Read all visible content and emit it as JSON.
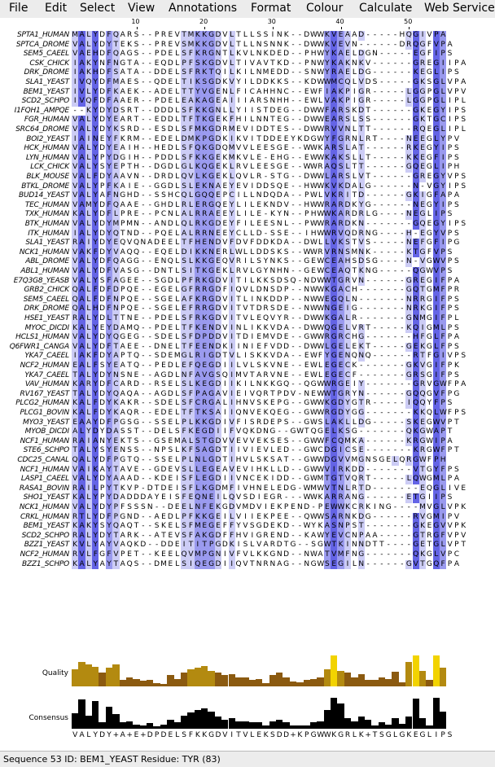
{
  "menubar": {
    "items": [
      "File",
      "Edit",
      "Select",
      "View",
      "Annotations",
      "Format",
      "Colour",
      "Calculate",
      "Web Service"
    ]
  },
  "ruler": {
    "ticks": [
      "10",
      "20",
      "30",
      "40",
      "50"
    ]
  },
  "colors": {
    "strong": "#6464e6",
    "medium": "#9a9aef",
    "light": "#ccccf5",
    "quality_low": "#8b5a10",
    "quality_mid": "#b38a10",
    "quality_high": "#f2d300",
    "consensus": "#000000"
  },
  "sequences": [
    {
      "id": "SPTA1_HUMAN",
      "seq": "MALYDFQARS--PREVTMKKGDVLTLLSSINK--DWWKVEAAD-----HQGIVPA"
    },
    {
      "id": "SPTCA_DROME",
      "seq": "VALYDYTEKS--PREVSMKKGDVLTLLNSNNK--DWWKVEVN------DRQGFVPA"
    },
    {
      "id": "SEM5_CAEEL",
      "seq": "VAEHDFQAGS--PDELSFKRGNTLKVLNKDED--PHWYKAELDGN-----EGFIPS"
    },
    {
      "id": "CSK_CHICK",
      "seq": "IAKYNFNGTA--EQDLPFSKGDVLTIVAVTKD--PNWYKAKNKV------GREGIIPA"
    },
    {
      "id": "DRK_DROME",
      "seq": "IAKHDFSATA--DDELSFRKTQILKILNMEDD--SNWYRAELDG------KEGLIPS"
    },
    {
      "id": "SLA1_YEAST",
      "seq": "IVQYDFMAES--QDELTIKSGDKVYILDDKKS--KDWWMCQLVDS-----GKSGLVPA"
    },
    {
      "id": "BEM1_YEAST",
      "seq": "IVLYDFKAEK--ADELTTYVGENLFICAHHNC--EWFIAKPIGR-----LGGPGLVPV"
    },
    {
      "id": "SCD2_SCHPO",
      "seq": "IVQFDFAAER--PDELEAKAGEAIIIARSNHH--EWLVAKPIGR-----LGGPGLIPL"
    },
    {
      "id": "I1FQH1_AMPQE",
      "seq": "--KYDYDSRT--DDDLSFKKGNLLYIISTDEG--DWWFARSKDT------GKEGYIPS"
    },
    {
      "id": "FGR_HUMAN",
      "seq": "VALYDYEART--EDDLTFTKGEKFHILNNTEG--DWWEARSLSS------GKTGCIPS"
    },
    {
      "id": "SRC64_DROME",
      "seq": "VALYDYKSRD--ESDLSFMKGDRMEVIDDTES--DWWRVVNLTT------RQEGLIPL"
    },
    {
      "id": "BOI2_YEAST",
      "seq": "IAINEYFKRM--EDELDMKPGDKIKVITDDEEYKDGWYFGRNLRT----NEEGLYPV"
    },
    {
      "id": "HCK_HUMAN",
      "seq": "VALYDYEAIH--HEDLSFQKGDQMVVLEESGE--WWKARSLAT------RKEGYIPS"
    },
    {
      "id": "LYN_HUMAN",
      "seq": "VALYPYDGIH--PDDLSFKKGEKMKVLE-EHG--EWWKAKSLLT-----KKEGFIPS"
    },
    {
      "id": "LCK_CHICK",
      "seq": "VALYSYEPTH--DGDLGLKQGEKLRVLEESGE--WWRAQSLTT------GQEGLIPH"
    },
    {
      "id": "BLK_MOUSE",
      "seq": "VALFDYAAVN--DRDLQVLKGEKLQVLR-STG--DWWLARSLVT------GREGYVPS"
    },
    {
      "id": "BTKL_DROME",
      "seq": "VALYPFKAIE--GGDLSLEKNAEYEVIDDSQE--HWWKVKDALG------N-VGYIPS"
    },
    {
      "id": "BUD14_YEAST",
      "seq": "VALYAFNGHD--SSHCQLGQQEPCILLNDQDA--PWLVKRITD------GKIGFAPA"
    },
    {
      "id": "TEC_HUMAN",
      "seq": "VAMYDFQAAE--GHDLRLERGQEYLILEKNDV--HWWRARDKYG------NEGYIPS"
    },
    {
      "id": "TXK_HUMAN",
      "seq": "KALYDFLPRE--PCNLALRRAEEYLILE-KYN--PHWWKARDRLG----NEGLIPS"
    },
    {
      "id": "BTK_HUMAN",
      "seq": "VALYDYMPMN--ANDLQLRKGDEYFILEESNL--PWWRARDKN-------GQEGYIPS"
    },
    {
      "id": "ITK_HUMAN",
      "seq": "IALYDYQTND--PQELALRRNEEYCLLD-SSE--IHWWRVQDRNG----H-EGYVPS"
    },
    {
      "id": "SLA1_YEAST",
      "seq": "RAIYDYEQVQNADEELTFHENDVFDVFDDKDA--DWLLVKSTVS-----NEFGFIPG"
    },
    {
      "id": "NCK1_HUMAN",
      "seq": "VAKFDYVAQQ--EQELDIKKNERLWLLDDSKS--WWRVRNSMNK-----KTGFVPS"
    },
    {
      "id": "ABL_DROME",
      "seq": "VALYDFQAGG--ENQLSLKKGEQVRILSYNKS--GEWCEAHSDSG----N-VGWVPS"
    },
    {
      "id": "ABL1_HUMAN",
      "seq": "VALYDFVASG--DNTLSITKGEKLRVLGYNHN--GEWCEAQTKNG-----QGWVPS"
    },
    {
      "id": "E7Q3G8_YEASB",
      "seq": "VALYSFAGEE--SGDLPFRKGDVITILKKSDSQ-NDWWTGRVN------GREGIFPA"
    },
    {
      "id": "GRB2_CHICK",
      "seq": "QALFDFDPQE--EGELGFRRGDFIQVLDNSDP--NWWKGACH-------GQTGMFPR"
    },
    {
      "id": "SEM5_CAEEL",
      "seq": "QALFDFNPQE--SGELAFKRGDVITLINKDDP--NWWEGQLN-------NRRGIFPS"
    },
    {
      "id": "DRK_DROME",
      "seq": "QALHDFNPQE--SGELEFRRGDVITVTDRSDE--NWWNGEIG-------NRKGIFPS"
    },
    {
      "id": "HSE1_YEAST",
      "seq": "RALYDLTTNE--PDELSFRKGDVITVLEQVYR--DWWKGALR-------GNMGIFPL"
    },
    {
      "id": "MYOC_DICDI",
      "seq": "KALYEYDAMQ--PDELTFKENDVINLIKKVDA--DWWQGELVRT-----KQIGMLPS"
    },
    {
      "id": "HCLS1_HUMAN",
      "seq": "VALYDYQGEG--SDELSFDPDDVITDIEMVDE--GWWRGRCHG-------HFGLFPA"
    },
    {
      "id": "Q6FWR1_CANGA",
      "seq": "VALYDFTAEE--DNELTFEENDKIINIEFVDD--DWWLGELEKT-----GEKGLFPS"
    },
    {
      "id": "YKA7_CAEEL",
      "seq": "IAKFDYAPTQ--SDEMGLRIGDTVLISKKVDA--EWFYGENQNQ------RTFGIVPS"
    },
    {
      "id": "NCF2_HUMAN",
      "seq": "EALFSYEATQ--PEDLEFQEGDIILVLSKVNE--EWLEGECK-------GKVGIFPK"
    },
    {
      "id": "YKA7_CAEEL",
      "seq": "TALYDYNSNE--AGDLNFAVGSQIMVTARVNE--EWLEGECF-------GRSGIFPS"
    },
    {
      "id": "VAV_HUMAN",
      "seq": "KARYDFCARD--RSELSLKEGDIIKILNKKGQ--QGWWRGEIY-------GRVGWFPA"
    },
    {
      "id": "RV167_YEAST",
      "seq": "TALYDYQAQA--AGDLSFPAGAVIEIVQRTPDV-NEWWTGRYN------GQQGVFPG"
    },
    {
      "id": "PLCG2_HUMAN",
      "seq": "KALFDYKAKR--SDELSFCRGALIHNVSKEPG--GWWKGDYGTR-----IQQYFPS"
    },
    {
      "id": "PLCG1_BOVIN",
      "seq": "KALFDYKAQR--EDELTFTKSAIIQNVEKQEG--GWWRGDYGG-------KKQLWFPS"
    },
    {
      "id": "MYO3_YEAST",
      "seq": "EAAYDFPGSG--SSELPLKKGDIVFISRDEPS--GWSLAKLLDG-----SKEGWVPT"
    },
    {
      "id": "MYOB_DICDI",
      "seq": "ALYDYDASST--DELSFKEGDIIFVQKDNG--GWTQGELKSG-------QKGWAPT"
    },
    {
      "id": "NCF1_HUMAN",
      "seq": "RAIANYEKTS--GSEMALSTGDVVEVVEKSES--GWWFCQMKA------KRGWIPA"
    },
    {
      "id": "STE6_SCHPO",
      "seq": "TALYSYENSS--NPSLKFSAGDTIIVIEVLED--GWCDGICSE-------KRGWFPT"
    },
    {
      "id": "CDC25_CANAL",
      "seq": "QALYDFPGTQ--SSELPLNLGDTIHVLSKSAT--GWWDGVVMGNSGELQRGWFPH"
    },
    {
      "id": "NCF1_HUMAN",
      "seq": "VAIKAYTAVE--GDEVSLLEGEAVEVIHKLLD--GWWVIRKDD-------VTGYFPS"
    },
    {
      "id": "LASP1_CAEEL",
      "seq": "VALYDYAAAD--KDEISFLEGDIIVNCEKIDD--GWMTGTVQRT-----LQWGMLPA"
    },
    {
      "id": "RASA1_BOVIN",
      "seq": "RAILPYTKVP-DTDEISFLKGDMFIVHNELEDG-WMWVTNLRTD-------EQGLIVE"
    },
    {
      "id": "SHO1_YEAST",
      "seq": "KALYPYDADDDAYEISFEQNEILQVSDIEGR---WWKARRANG------ETGIIPS"
    },
    {
      "id": "NCK1_HUMAN",
      "seq": "VALYDYPFSSSN--DEELNFEKGDVMDVIEKPEND-PEWWKCRKING----MVGLVPK"
    },
    {
      "id": "CRKL_HUMAN",
      "seq": "RTLYDFPGND--AEDLPFKKGEILVIIEKPEE--QWWSARNKDG------RVGMIPV"
    },
    {
      "id": "BEM1_YEAST",
      "seq": "KAKYSYQAQT--SKELSFMEGEFFYVSGDEKD--WYKASNPST-------GKEGVVPK"
    },
    {
      "id": "SCD2_SCHPO",
      "seq": "RALYDYTARK--ATEVSFAKGDFFHVIGREND--KAWYEVCNPAA-----GTRGFVPV"
    },
    {
      "id": "BZZ1_YEAST",
      "seq": "KVLYAYVAQKD--DDEITITPGDKISLVARDTG--SGWTKINNDTT----GETGLVPT"
    },
    {
      "id": "NCF2_HUMAN",
      "seq": "RVLFGFVPET--KEELQVMPGNIVFVLKKGND--NWATVMFNG-------QKGLVPC"
    },
    {
      "id": "BZZ1_SCHPO",
      "seq": "KALYAYTAQS--DMELSIQEGDIIQVTNRNAG--NGWSEGILN------GVTGQFPA"
    }
  ],
  "annotations": {
    "quality_label": "Quality",
    "consensus_label": "Consensus",
    "quality": [
      55,
      80,
      70,
      62,
      45,
      60,
      70,
      22,
      28,
      25,
      18,
      22,
      10,
      8,
      38,
      25,
      45,
      55,
      60,
      65,
      50,
      45,
      38,
      40,
      30,
      28,
      22,
      25,
      10,
      38,
      45,
      30,
      15,
      12,
      22,
      25,
      30,
      55,
      100,
      50,
      45,
      28,
      40,
      20,
      22,
      30,
      25,
      48,
      12,
      80,
      100,
      50,
      22,
      100,
      60
    ],
    "consensus": [
      50,
      95,
      42,
      90,
      20,
      72,
      48,
      22,
      25,
      12,
      10,
      18,
      8,
      12,
      30,
      20,
      42,
      52,
      60,
      65,
      55,
      40,
      30,
      35,
      25,
      25,
      20,
      22,
      10,
      25,
      30,
      20,
      10,
      10,
      10,
      20,
      25,
      60,
      100,
      82,
      35,
      25,
      40,
      28,
      10,
      20,
      12,
      35,
      15,
      40,
      98,
      35,
      10,
      100,
      55
    ],
    "consensus_seq": "VALYDY+A+E+DPDELSFKKGDVITVLEKSDD+KPGWWKGRLK+TSGLGKEGLIPS"
  },
  "status": {
    "text": "Sequence 53 ID: BEM1_YEAST Residue: TYR (83)"
  }
}
